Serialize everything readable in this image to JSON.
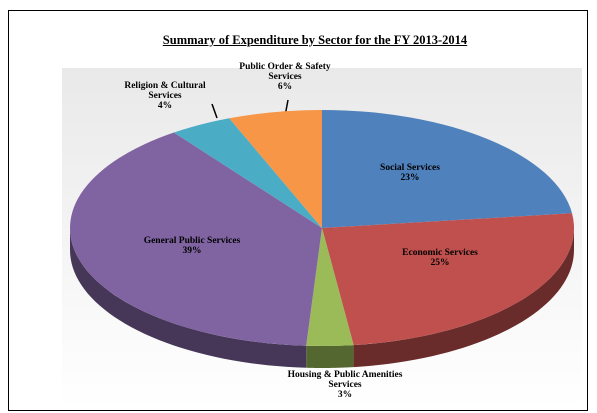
{
  "chart_data": {
    "type": "pie",
    "title": "Summary of Expenditure by Sector for the FY 2013-2014",
    "categories": [
      "Social Services",
      "Economic Services",
      "Housing & Public Amenities Services",
      "General Public Services",
      "Religion & Cultural Services",
      "Public Order & Safety Services"
    ],
    "values": [
      23,
      25,
      3,
      39,
      4,
      6
    ],
    "value_labels": [
      "23%",
      "25%",
      "3%",
      "39%",
      "4%",
      "6%"
    ],
    "colors": [
      "#4f81bd",
      "#c0504d",
      "#9bbb59",
      "#8064a2",
      "#4bacc6",
      "#f79646"
    ]
  }
}
